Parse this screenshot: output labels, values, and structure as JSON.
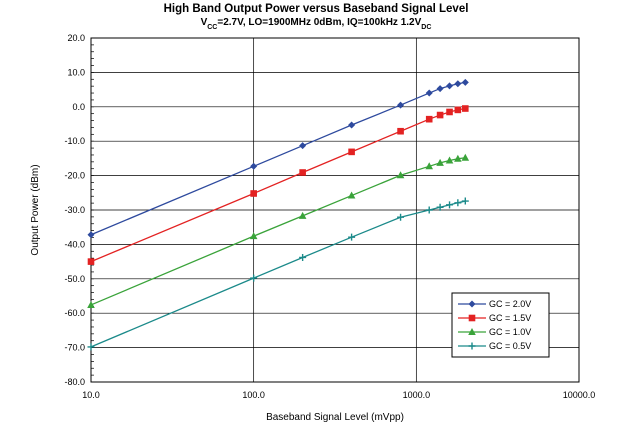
{
  "chart_data": {
    "type": "line",
    "title": "High Band Output Power versus Baseband Signal Level",
    "subtitle": {
      "text": "V_CC=2.7V, LO=1900MHz 0dBm, IQ=100kHz 1.2V_DC",
      "segments": [
        {
          "t": "V",
          "sub": false
        },
        {
          "t": "CC",
          "sub": true
        },
        {
          "t": "=2.7V, LO=1900MHz 0dBm, IQ=100kHz 1.2V",
          "sub": false
        },
        {
          "t": "DC",
          "sub": true
        }
      ]
    },
    "xlabel": "Baseband Signal Level (mVpp)",
    "ylabel": "Output Power (dBm)",
    "x_scale": "log",
    "xlim": [
      10,
      10000
    ],
    "ylim": [
      -80,
      20
    ],
    "grid": "major",
    "legend_position": "bottom-right",
    "x_ticks": [
      "10.0",
      "100.0",
      "1000.0",
      "10000.0"
    ],
    "y_ticks": [
      "20.0",
      "10.0",
      "0.0",
      "-10.0",
      "-20.0",
      "-30.0",
      "-40.0",
      "-50.0",
      "-60.0",
      "-70.0",
      "-80.0"
    ],
    "x_tick_values": [
      10,
      100,
      1000,
      10000
    ],
    "y_tick_values": [
      20,
      10,
      0,
      -10,
      -20,
      -30,
      -40,
      -50,
      -60,
      -70,
      -80
    ],
    "series": [
      {
        "name": "GC = 2.0V",
        "color": "#2e4a9e",
        "marker": "diamond",
        "x": [
          10,
          100,
          200,
          400,
          800,
          1200,
          1400,
          1600,
          1800,
          2000
        ],
        "y": [
          -37.2,
          -17.3,
          -11.3,
          -5.3,
          0.5,
          4.0,
          5.3,
          6.1,
          6.7,
          7.1
        ]
      },
      {
        "name": "GC = 1.5V",
        "color": "#e32222",
        "marker": "square",
        "x": [
          10,
          100,
          200,
          400,
          800,
          1200,
          1400,
          1600,
          1800,
          2000
        ],
        "y": [
          -45.0,
          -25.2,
          -19.1,
          -13.1,
          -7.1,
          -3.6,
          -2.4,
          -1.5,
          -0.9,
          -0.5
        ]
      },
      {
        "name": "GC = 1.0V",
        "color": "#3aa33a",
        "marker": "triangle",
        "x": [
          10,
          100,
          200,
          400,
          800,
          1200,
          1400,
          1600,
          1800,
          2000
        ],
        "y": [
          -57.6,
          -37.6,
          -31.7,
          -25.8,
          -19.9,
          -17.3,
          -16.3,
          -15.6,
          -15.1,
          -14.8
        ]
      },
      {
        "name": "GC = 0.5V",
        "color": "#1b8a8a",
        "marker": "plus",
        "x": [
          10,
          100,
          200,
          400,
          800,
          1200,
          1400,
          1600,
          1800,
          2000
        ],
        "y": [
          -69.8,
          -49.8,
          -43.8,
          -37.9,
          -32.1,
          -30.0,
          -29.2,
          -28.5,
          -27.9,
          -27.4
        ]
      }
    ]
  }
}
